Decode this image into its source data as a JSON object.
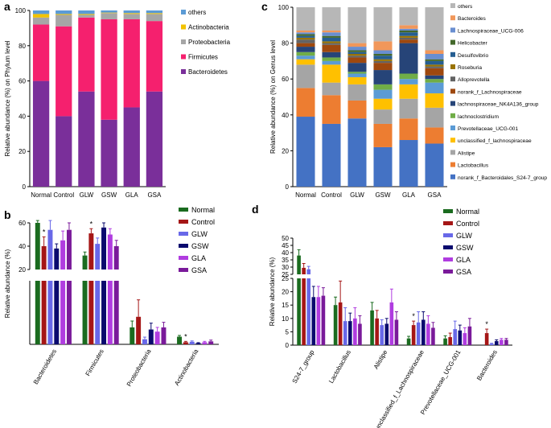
{
  "chart_data": [
    {
      "id": "a",
      "panel_label": "a",
      "type": "stacked-bar",
      "title": "",
      "ylabel": "Relative abundance (%) on Phylum level",
      "ylim": [
        0,
        100
      ],
      "yticks": [
        "0",
        "20",
        "40",
        "60",
        "80",
        "100"
      ],
      "categories": [
        "Normal",
        "Control",
        "GLW",
        "GSW",
        "GLA",
        "GSA"
      ],
      "series": [
        {
          "name": "Bacteroidetes",
          "color": "#7a2f9a",
          "values": [
            60,
            40,
            54,
            38,
            45,
            54
          ]
        },
        {
          "name": "Firmicutes",
          "color": "#f5206e",
          "values": [
            32,
            51,
            42,
            57,
            50,
            40
          ]
        },
        {
          "name": "Proteobacteria",
          "color": "#a6a6a6",
          "values": [
            4,
            6.5,
            1.5,
            3.5,
            3,
            4
          ]
        },
        {
          "name": "Actinobacteria",
          "color": "#f2c200",
          "values": [
            2,
            0.5,
            0.5,
            0.3,
            0.5,
            0.5
          ]
        },
        {
          "name": "others",
          "color": "#5b9bd5",
          "values": [
            2,
            2,
            2,
            1.2,
            1.5,
            1.5
          ]
        }
      ],
      "legend_order": [
        "others",
        "Actinobacteria",
        "Proteobacteria",
        "Firmicutes",
        "Bacteroidetes"
      ]
    },
    {
      "id": "c",
      "panel_label": "c",
      "type": "stacked-bar",
      "title": "",
      "ylabel": "Relative abundance (%) on Genus level",
      "ylim": [
        0,
        100
      ],
      "yticks": [
        "0",
        "20",
        "40",
        "60",
        "80",
        "100"
      ],
      "categories": [
        "Normal",
        "Control",
        "GLW",
        "GSW",
        "GLA",
        "GSA"
      ],
      "series": [
        {
          "name": "norank_f_Bacteroidales_S24-7_group",
          "color": "#4472c4",
          "values": [
            39,
            35,
            38,
            22,
            26,
            24
          ]
        },
        {
          "name": "Lactobacillus",
          "color": "#ed7d31",
          "values": [
            16,
            16,
            10,
            13,
            12,
            9
          ]
        },
        {
          "name": "Alistipe",
          "color": "#a5a5a5",
          "values": [
            13,
            7,
            9,
            8,
            11,
            11
          ]
        },
        {
          "name": "unclassified_f_lachnospiraceae",
          "color": "#ffc000",
          "values": [
            3,
            10,
            4,
            6,
            8,
            8
          ]
        },
        {
          "name": "Prevotellaceae_UCG-001",
          "color": "#5b9bd5",
          "values": [
            2,
            2,
            2,
            5,
            3,
            6
          ]
        },
        {
          "name": "lachnoclostridium",
          "color": "#70ad47",
          "values": [
            2,
            2,
            1,
            3,
            3,
            2
          ]
        },
        {
          "name": "lachnospiraceae_NK4A136_group",
          "color": "#264478",
          "values": [
            3,
            3,
            5,
            8,
            17,
            2
          ]
        },
        {
          "name": "norank_f_Lachnospiraceae",
          "color": "#9e480e",
          "values": [
            2,
            4,
            3,
            4,
            2,
            4
          ]
        },
        {
          "name": "Alloprevotella",
          "color": "#636363",
          "values": [
            2,
            1,
            1,
            1,
            1,
            1
          ]
        },
        {
          "name": "Roseburia",
          "color": "#997300",
          "values": [
            1,
            1,
            1,
            1,
            1,
            1
          ]
        },
        {
          "name": "Desulfovibrio",
          "color": "#255e91",
          "values": [
            1,
            2,
            1,
            2,
            2,
            2
          ]
        },
        {
          "name": "Helicobacter",
          "color": "#43682b",
          "values": [
            1,
            1,
            1,
            1,
            1,
            1
          ]
        },
        {
          "name": "Lachnospiraceae_UCG-006",
          "color": "#698ed0",
          "values": [
            1,
            2,
            2,
            2,
            1,
            3
          ]
        },
        {
          "name": "Bacteroides",
          "color": "#f1975a",
          "values": [
            1,
            1,
            2,
            5,
            2,
            2
          ]
        },
        {
          "name": "others",
          "color": "#b7b7b7",
          "values": [
            13,
            13,
            20,
            19,
            10,
            24
          ]
        }
      ],
      "legend_order": [
        "others",
        "Bacteroides",
        "Lachnospiraceae_UCG-006",
        "Helicobacter",
        "Desulfovibrio",
        "Roseburia",
        "Alloprevotella",
        "norank_f_Lachnospiraceae",
        "lachnospiraceae_NK4A136_group",
        "lachnoclostridium",
        "Prevotellaceae_UCG-001",
        "unclassified_f_lachnospiraceae",
        "Alistipe",
        "Lactobacillus",
        "norank_f_Bacteroidales_S24-7_group"
      ]
    },
    {
      "id": "b",
      "panel_label": "b",
      "type": "grouped-bar",
      "title": "",
      "ylabel": "Relative abundance (%)",
      "axis_break": true,
      "lower_ylim": [
        0,
        15
      ],
      "upper_ylim": [
        20,
        60
      ],
      "yticks_upper": [
        "20",
        "40",
        "60"
      ],
      "categories": [
        "Bacteroidetes",
        "Firmicutes",
        "Proteobacteria",
        "Actinobacteria"
      ],
      "series": [
        {
          "name": "Normal",
          "color": "#1a6b1f",
          "values": [
            60,
            32,
            4,
            1.8
          ],
          "errors": [
            2,
            3,
            1.5,
            0.3
          ]
        },
        {
          "name": "Control",
          "color": "#a51616",
          "values": [
            40,
            51,
            6.5,
            0.5
          ],
          "errors": [
            8,
            4,
            4,
            0.2
          ]
        },
        {
          "name": "GLW",
          "color": "#6868e8",
          "values": [
            54,
            42,
            1.2,
            0.6
          ],
          "errors": [
            8,
            5,
            0.5,
            0.2
          ]
        },
        {
          "name": "GSW",
          "color": "#0a0a6e",
          "values": [
            38,
            56,
            3.5,
            0.3
          ],
          "errors": [
            4,
            4,
            1.5,
            0.1
          ]
        },
        {
          "name": "GLA",
          "color": "#b03ce0",
          "values": [
            45,
            50,
            3,
            0.5
          ],
          "errors": [
            8,
            5,
            1,
            0.2
          ]
        },
        {
          "name": "GSA",
          "color": "#7a1a9a",
          "values": [
            54,
            40,
            4,
            0.7
          ],
          "errors": [
            6,
            5,
            1.2,
            0.3
          ]
        }
      ],
      "significance": [
        {
          "category": "Bacteroidetes",
          "series": "Control",
          "label": "*"
        },
        {
          "category": "Firmicutes",
          "series": "Control",
          "label": "*"
        },
        {
          "category": "Actinobacteria",
          "series": "Control",
          "label": "*"
        }
      ]
    },
    {
      "id": "d",
      "panel_label": "d",
      "type": "grouped-bar",
      "title": "",
      "ylabel": "Relative abundance (%)",
      "axis_break": true,
      "lower_ylim": [
        0,
        25
      ],
      "upper_ylim": [
        25,
        50
      ],
      "yticks_upper": [
        "25",
        "30",
        "35",
        "40",
        "45",
        "50"
      ],
      "yticks_lower": [
        "0",
        "5",
        "10",
        "15",
        "20",
        "25"
      ],
      "categories": [
        "S24-7_group",
        "Lactobacillus",
        "Alistipe",
        "unclassified_f_Lachnospiraceae",
        "Prevotellaceae_UCG-001",
        "Bacteroides"
      ],
      "series": [
        {
          "name": "Normal",
          "color": "#1a6b1f",
          "values": [
            38,
            15,
            13,
            2.5,
            2.5,
            0
          ],
          "errors": [
            4,
            3,
            3,
            0.8,
            1,
            0
          ]
        },
        {
          "name": "Control",
          "color": "#a51616",
          "values": [
            29.5,
            16,
            10,
            7.5,
            3,
            4.5
          ],
          "errors": [
            3,
            8,
            3,
            1.5,
            1.5,
            1.5
          ]
        },
        {
          "name": "GLW",
          "color": "#6868e8",
          "values": [
            28.5,
            9,
            7.5,
            8.5,
            6,
            0.5
          ],
          "errors": [
            2,
            5,
            2,
            4,
            3,
            0.2
          ]
        },
        {
          "name": "GSW",
          "color": "#0a0a6e",
          "values": [
            18,
            9,
            8,
            9.5,
            5.5,
            1.5
          ],
          "errors": [
            4,
            3,
            2,
            3,
            2,
            0.5
          ]
        },
        {
          "name": "GLA",
          "color": "#b03ce0",
          "values": [
            18,
            10,
            16,
            8,
            4.5,
            2
          ],
          "errors": [
            4,
            4,
            5,
            3,
            2,
            0.5
          ]
        },
        {
          "name": "GSA",
          "color": "#7a1a9a",
          "values": [
            18.5,
            8,
            9.5,
            6.5,
            7,
            2
          ],
          "errors": [
            3,
            3,
            3,
            2,
            3,
            0.5
          ]
        }
      ],
      "significance": [
        {
          "category": "unclassified_f_Lachnospiraceae",
          "series": "Control",
          "label": "*"
        },
        {
          "category": "Bacteroides",
          "series": "Control",
          "label": "*"
        }
      ]
    }
  ]
}
